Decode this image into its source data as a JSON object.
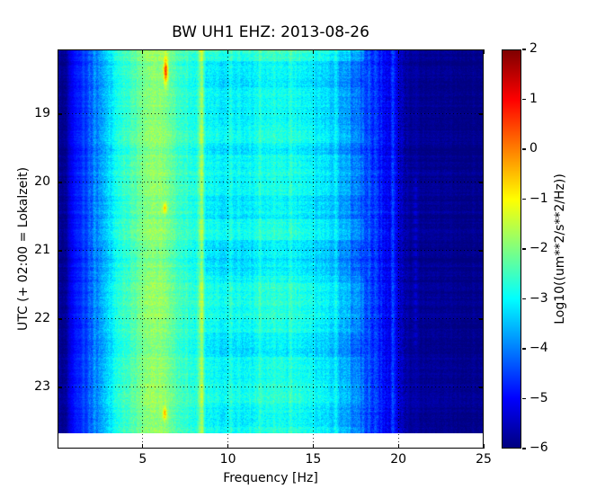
{
  "title": "BW UH1 EHZ: 2013-08-26",
  "axes": {
    "xlabel": "Frequency [Hz]",
    "ylabel": "UTC (+ 02:00 = Lokalzeit)",
    "x_ticks": [
      5,
      10,
      15,
      20,
      25
    ],
    "y_ticks": [
      19,
      20,
      21,
      22,
      23
    ]
  },
  "colorbar": {
    "label": "Log10((um**2/s**2/Hz))",
    "ticks": [
      2,
      1,
      0,
      -1,
      -2,
      -3,
      -4,
      -5,
      -6
    ],
    "vmin": -6,
    "vmax": 2,
    "colormap": "jet",
    "colormap_stops": [
      [
        0,
        "#00007f"
      ],
      [
        0.125,
        "#0000ff"
      ],
      [
        0.375,
        "#00ffff"
      ],
      [
        0.625,
        "#ffff00"
      ],
      [
        0.875,
        "#ff0000"
      ],
      [
        1,
        "#7f0000"
      ]
    ]
  },
  "chart_data": {
    "type": "heatmap",
    "subtype": "spectrogram",
    "title": "BW UH1 EHZ: 2013-08-26",
    "xlabel": "Frequency [Hz]",
    "ylabel": "UTC (+ 02:00 = Lokalzeit)",
    "x_range_hz": [
      0,
      25
    ],
    "x_tick_values": [
      5,
      10,
      15,
      20,
      25
    ],
    "y_tick_hours_utc": [
      19,
      20,
      21,
      22,
      23
    ],
    "y_range_hours_utc": [
      18.05,
      23.89
    ],
    "data_end_hour_utc": 23.67,
    "value_range_log10_psd": [
      -6,
      2
    ],
    "grid": "dotted-black-major",
    "legend_position": "colorbar-right",
    "freq_profile_log10_psd": [
      [
        0,
        -5.9
      ],
      [
        0.5,
        -5.8
      ],
      [
        0.8,
        -5.1
      ],
      [
        1.2,
        -4.8
      ],
      [
        1.7,
        -4.5
      ],
      [
        2.2,
        -4.0
      ],
      [
        2.8,
        -3.5
      ],
      [
        3.3,
        -3.0
      ],
      [
        4,
        -2.6
      ],
      [
        4.6,
        -2.3
      ],
      [
        5.2,
        -2.0
      ],
      [
        5.7,
        -1.85
      ],
      [
        6.1,
        -1.85
      ],
      [
        6.5,
        -2.1
      ],
      [
        7,
        -2.45
      ],
      [
        7.6,
        -2.65
      ],
      [
        8.2,
        -2.8
      ],
      [
        9,
        -3.0
      ],
      [
        10,
        -3.1
      ],
      [
        11,
        -3.0
      ],
      [
        12,
        -2.9
      ],
      [
        13,
        -2.85
      ],
      [
        14,
        -2.9
      ],
      [
        15,
        -3.05
      ],
      [
        16,
        -3.3
      ],
      [
        16.8,
        -3.6
      ],
      [
        17.5,
        -4.05
      ],
      [
        18.3,
        -4.5
      ],
      [
        19,
        -4.75
      ],
      [
        19.6,
        -5.1
      ],
      [
        20.2,
        -5.55
      ],
      [
        20.8,
        -5.8
      ],
      [
        21.5,
        -5.85
      ],
      [
        25,
        -5.9
      ]
    ],
    "spectral_lines": [
      {
        "freq_hz": 8.45,
        "boost": 1.15,
        "width_hz": 0.12,
        "dashed": false
      },
      {
        "freq_hz": 10.15,
        "boost": 0.3,
        "width_hz": 0.08,
        "dashed": false
      },
      {
        "freq_hz": 11.9,
        "boost": 0.25,
        "width_hz": 0.08,
        "dashed": false
      },
      {
        "freq_hz": 13.7,
        "boost": 0.3,
        "width_hz": 0.08,
        "dashed": false
      },
      {
        "freq_hz": 16.3,
        "boost": 0.3,
        "width_hz": 0.08,
        "dashed": false
      },
      {
        "freq_hz": 18.3,
        "boost": 0.35,
        "width_hz": 0.1,
        "dashed": false
      },
      {
        "freq_hz": 19.7,
        "boost": 0.5,
        "width_hz": 0.1,
        "dashed": false
      },
      {
        "freq_hz": 21.0,
        "boost": 0.4,
        "width_hz": 0.08,
        "dashed": true
      }
    ],
    "transient_events": [
      {
        "freq_hz": 6.35,
        "time_hours_utc": 18.36,
        "amp": 2.5,
        "dur_rows": 10
      },
      {
        "freq_hz": 6.3,
        "time_hours_utc": 20.37,
        "amp": 1.4,
        "dur_rows": 4
      },
      {
        "freq_hz": 6.3,
        "time_hours_utc": 23.38,
        "amp": 1.5,
        "dur_rows": 5
      }
    ],
    "texture": {
      "column_jitter": 0.2,
      "row_jitter": 0.15,
      "pixel_noise": 0.3,
      "block_amp": 0.3,
      "seed": 1234
    }
  }
}
